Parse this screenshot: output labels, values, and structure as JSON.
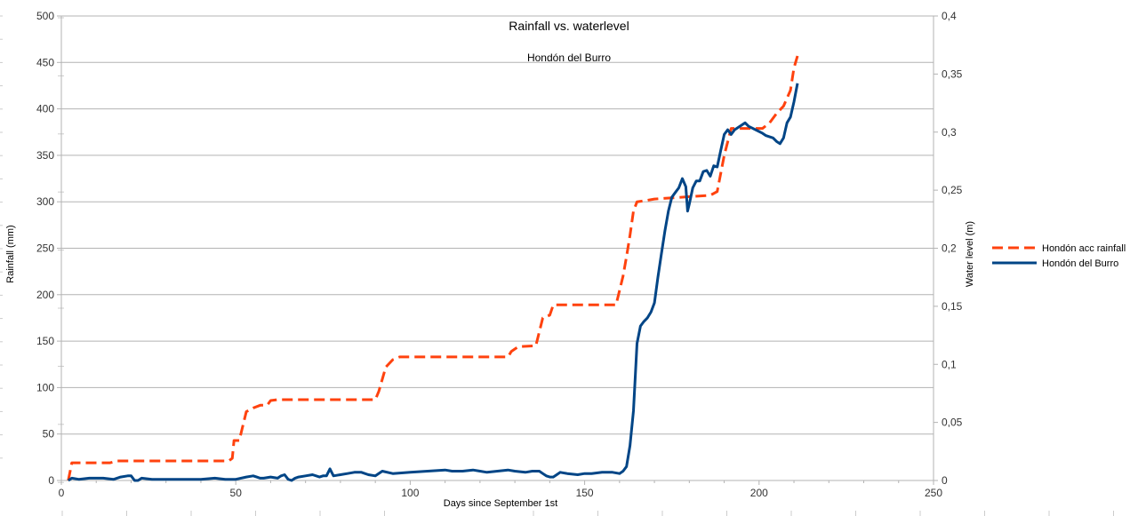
{
  "chart_data": {
    "type": "line",
    "title": "Rainfall vs. waterlevel",
    "subtitle": "Hondón del Burro",
    "xlabel": "Days since September 1st",
    "ylabel": "Rainfall (mm)",
    "y2label": "Water level (m)",
    "xlim": [
      0,
      250
    ],
    "ylim": [
      0,
      500
    ],
    "y2lim": [
      0,
      0.4
    ],
    "x_ticks": [
      0,
      50,
      100,
      150,
      200,
      250
    ],
    "x_tick_labels": [
      "0",
      "50",
      "100",
      "150",
      "200",
      "250"
    ],
    "y_ticks": [
      0,
      50,
      100,
      150,
      200,
      250,
      300,
      350,
      400,
      450,
      500
    ],
    "y_tick_labels": [
      "0",
      "50",
      "100",
      "150",
      "200",
      "250",
      "300",
      "350",
      "400",
      "450",
      "500"
    ],
    "y2_ticks": [
      0,
      0.05,
      0.1,
      0.15,
      0.2,
      0.25,
      0.3,
      0.35,
      0.4
    ],
    "y2_tick_labels": [
      "0",
      "0,05",
      "0,1",
      "0,15",
      "0,2",
      "0,25",
      "0,3",
      "0,35",
      "0,4"
    ],
    "grid": true,
    "legend_position": "right",
    "series": [
      {
        "name": "Hondón acc rainfall",
        "axis": "left",
        "color": "#ff420e",
        "style": "dashed",
        "points": [
          [
            2,
            0
          ],
          [
            3,
            19
          ],
          [
            14,
            19
          ],
          [
            16,
            21
          ],
          [
            48,
            21
          ],
          [
            49,
            24
          ],
          [
            49.5,
            43
          ],
          [
            51,
            43
          ],
          [
            53,
            74
          ],
          [
            55,
            78
          ],
          [
            57,
            81
          ],
          [
            59,
            81
          ],
          [
            60,
            86
          ],
          [
            62,
            87
          ],
          [
            90,
            87
          ],
          [
            91,
            96
          ],
          [
            93,
            122
          ],
          [
            95,
            130
          ],
          [
            97,
            133
          ],
          [
            128,
            133
          ],
          [
            129,
            139
          ],
          [
            131,
            144
          ],
          [
            136,
            145
          ],
          [
            138,
            175
          ],
          [
            140,
            178
          ],
          [
            141,
            189
          ],
          [
            159,
            189
          ],
          [
            161,
            220
          ],
          [
            162,
            241
          ],
          [
            163,
            264
          ],
          [
            164,
            290
          ],
          [
            165,
            300
          ],
          [
            167,
            301
          ],
          [
            170,
            303
          ],
          [
            186,
            307
          ],
          [
            188,
            311
          ],
          [
            190,
            350
          ],
          [
            192,
            379
          ],
          [
            201,
            379
          ],
          [
            203,
            385
          ],
          [
            205,
            395
          ],
          [
            207,
            403
          ],
          [
            209,
            420
          ],
          [
            210,
            444
          ],
          [
            211,
            457
          ]
        ]
      },
      {
        "name": "Hondón del Burro",
        "axis": "right",
        "color": "#004586",
        "style": "solid",
        "points": [
          [
            2,
            0.0
          ],
          [
            3,
            0.002
          ],
          [
            5,
            0.001
          ],
          [
            8,
            0.002
          ],
          [
            12,
            0.002
          ],
          [
            15,
            0.001
          ],
          [
            17,
            0.003
          ],
          [
            19,
            0.004
          ],
          [
            20,
            0.004
          ],
          [
            21,
            0.0
          ],
          [
            22,
            0.0
          ],
          [
            23,
            0.002
          ],
          [
            26,
            0.001
          ],
          [
            30,
            0.001
          ],
          [
            35,
            0.001
          ],
          [
            40,
            0.001
          ],
          [
            44,
            0.002
          ],
          [
            47,
            0.001
          ],
          [
            50,
            0.001
          ],
          [
            53,
            0.003
          ],
          [
            55,
            0.004
          ],
          [
            56,
            0.003
          ],
          [
            57,
            0.002
          ],
          [
            58,
            0.002
          ],
          [
            60,
            0.003
          ],
          [
            62,
            0.002
          ],
          [
            63,
            0.004
          ],
          [
            64,
            0.005
          ],
          [
            65,
            0.001
          ],
          [
            66,
            0.0
          ],
          [
            67,
            0.002
          ],
          [
            68,
            0.003
          ],
          [
            70,
            0.004
          ],
          [
            72,
            0.005
          ],
          [
            74,
            0.003
          ],
          [
            75,
            0.004
          ],
          [
            76,
            0.004
          ],
          [
            77,
            0.01
          ],
          [
            78,
            0.004
          ],
          [
            80,
            0.005
          ],
          [
            82,
            0.006
          ],
          [
            84,
            0.007
          ],
          [
            86,
            0.007
          ],
          [
            88,
            0.005
          ],
          [
            90,
            0.004
          ],
          [
            92,
            0.008
          ],
          [
            95,
            0.006
          ],
          [
            100,
            0.007
          ],
          [
            105,
            0.008
          ],
          [
            110,
            0.009
          ],
          [
            112,
            0.008
          ],
          [
            115,
            0.008
          ],
          [
            118,
            0.009
          ],
          [
            120,
            0.008
          ],
          [
            122,
            0.007
          ],
          [
            125,
            0.008
          ],
          [
            128,
            0.009
          ],
          [
            130,
            0.008
          ],
          [
            133,
            0.007
          ],
          [
            135,
            0.008
          ],
          [
            137,
            0.008
          ],
          [
            138,
            0.006
          ],
          [
            139,
            0.004
          ],
          [
            140,
            0.003
          ],
          [
            141,
            0.003
          ],
          [
            142,
            0.005
          ],
          [
            143,
            0.007
          ],
          [
            145,
            0.006
          ],
          [
            148,
            0.005
          ],
          [
            150,
            0.006
          ],
          [
            152,
            0.006
          ],
          [
            155,
            0.007
          ],
          [
            158,
            0.007
          ],
          [
            160,
            0.006
          ],
          [
            161,
            0.008
          ],
          [
            162,
            0.012
          ],
          [
            163,
            0.03
          ],
          [
            164,
            0.06
          ],
          [
            165,
            0.118
          ],
          [
            166,
            0.133
          ],
          [
            167,
            0.137
          ],
          [
            168,
            0.14
          ],
          [
            169,
            0.145
          ],
          [
            170,
            0.153
          ],
          [
            171,
            0.175
          ],
          [
            172,
            0.195
          ],
          [
            173,
            0.215
          ],
          [
            174,
            0.232
          ],
          [
            175,
            0.244
          ],
          [
            176,
            0.248
          ],
          [
            177,
            0.252
          ],
          [
            178,
            0.26
          ],
          [
            179,
            0.253
          ],
          [
            179.5,
            0.232
          ],
          [
            180,
            0.238
          ],
          [
            181,
            0.252
          ],
          [
            182,
            0.258
          ],
          [
            183,
            0.258
          ],
          [
            184,
            0.266
          ],
          [
            185,
            0.267
          ],
          [
            186,
            0.262
          ],
          [
            187,
            0.271
          ],
          [
            188,
            0.27
          ],
          [
            189,
            0.284
          ],
          [
            190,
            0.298
          ],
          [
            191,
            0.302
          ],
          [
            192,
            0.298
          ],
          [
            193,
            0.302
          ],
          [
            195,
            0.306
          ],
          [
            196,
            0.308
          ],
          [
            197,
            0.305
          ],
          [
            199,
            0.302
          ],
          [
            201,
            0.299
          ],
          [
            202,
            0.297
          ],
          [
            204,
            0.295
          ],
          [
            205,
            0.292
          ],
          [
            206,
            0.29
          ],
          [
            207,
            0.295
          ],
          [
            208,
            0.308
          ],
          [
            209,
            0.313
          ],
          [
            210,
            0.326
          ],
          [
            211,
            0.342
          ]
        ]
      }
    ]
  }
}
